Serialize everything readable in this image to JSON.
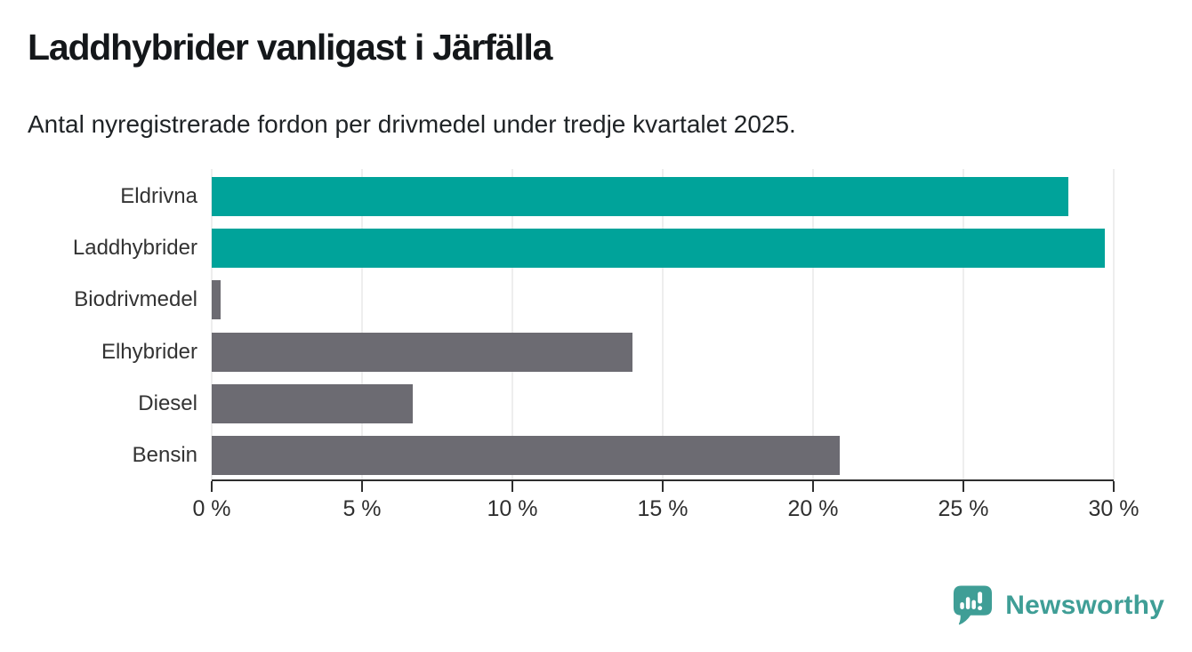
{
  "header": {
    "title": "Laddhybrider vanligast i Järfälla",
    "subtitle": "Antal nyregistrerade fordon per drivmedel under tredje kvartalet 2025."
  },
  "chart_data": {
    "type": "bar",
    "orientation": "horizontal",
    "title": "Laddhybrider vanligast i Järfälla",
    "subtitle": "Antal nyregistrerade fordon per drivmedel under tredje kvartalet 2025.",
    "categories": [
      "Eldrivna",
      "Laddhybrider",
      "Biodrivmedel",
      "Elhybrider",
      "Diesel",
      "Bensin"
    ],
    "values": [
      28.5,
      29.7,
      0.3,
      14.0,
      6.7,
      20.9
    ],
    "value_unit": "%",
    "bar_colors": [
      "#00a39a",
      "#00a39a",
      "#6c6b72",
      "#6c6b72",
      "#6c6b72",
      "#6c6b72"
    ],
    "xlim": [
      0,
      30
    ],
    "x_ticks": [
      0,
      5,
      10,
      15,
      20,
      25,
      30
    ],
    "x_tick_label_suffix": " %",
    "xlabel": "",
    "ylabel": "",
    "grid": "vertical",
    "legend": "none"
  },
  "colors": {
    "teal_bar": "#00a39a",
    "gray_bar": "#6c6b72",
    "gridline": "#dcdcdc",
    "axis": "#2e2e2e",
    "text": "#333333",
    "brand_teal": "#3f9e96"
  },
  "brand": {
    "name": "Newsworthy"
  }
}
